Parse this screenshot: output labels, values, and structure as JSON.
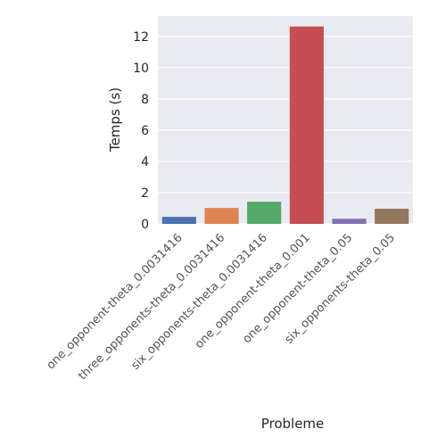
{
  "chart_data": {
    "type": "bar",
    "categories": [
      "one_opponent-theta_0.0031416",
      "three_opponents-theta_0.0031416",
      "six_opponents-theta_0.0031416",
      "one_opponent-theta_0.001",
      "one_opponent-theta_0.05",
      "six_opponents-theta_0.05"
    ],
    "values": [
      0.45,
      1.02,
      1.42,
      12.63,
      0.33,
      0.97
    ],
    "colors": [
      "#4c72b0",
      "#dd8452",
      "#55a868",
      "#c44e52",
      "#8172b3",
      "#937860"
    ],
    "xlabel": "Probleme",
    "ylabel": "Temps (s)",
    "ylim": [
      0,
      13.3
    ],
    "yticks": [
      0,
      2,
      4,
      6,
      8,
      10,
      12
    ],
    "grid": true,
    "background": "#eaeaf2"
  }
}
